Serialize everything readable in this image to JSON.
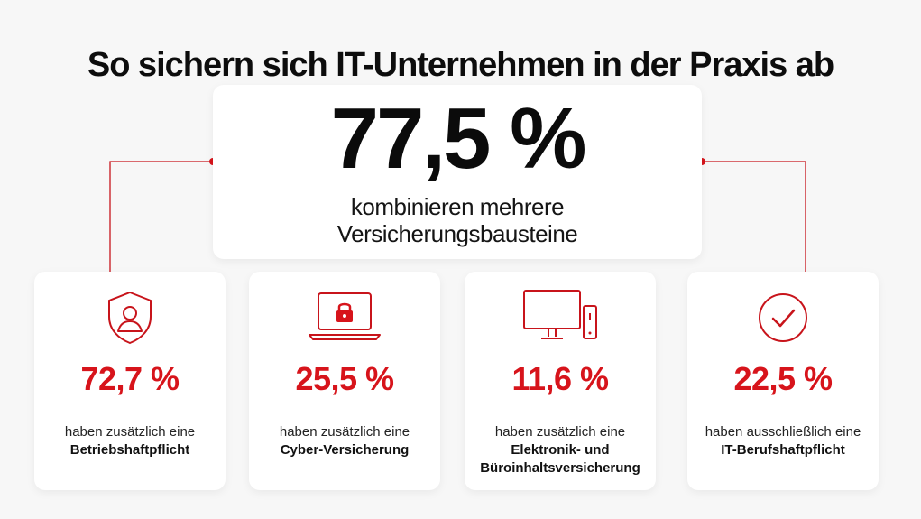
{
  "title": "So sichern sich IT-Unternehmen in der Praxis ab",
  "hero": {
    "value": "77,5 %",
    "line1": "kombinieren mehrere",
    "line2": "Versicherungsbausteine"
  },
  "cards": [
    {
      "icon": "shield-user-icon",
      "value": "72,7 %",
      "line1": "haben zusätzlich eine",
      "line2": "Betriebshaftpflicht",
      "line3": ""
    },
    {
      "icon": "laptop-lock-icon",
      "value": "25,5 %",
      "line1": "haben zusätzlich eine",
      "line2": "Cyber-Versicherung",
      "line3": ""
    },
    {
      "icon": "monitor-phone-icon",
      "value": "11,6 %",
      "line1": "haben zusätzlich eine",
      "line2": "Elektronik- und",
      "line3": "Büroinhaltsversicherung"
    },
    {
      "icon": "check-circle-icon",
      "value": "22,5 %",
      "line1": "haben ausschließlich eine",
      "line2": "IT-Berufshaftpflicht",
      "line3": ""
    }
  ],
  "colors": {
    "accent": "#d7141b",
    "text": "#111111",
    "background": "#f7f7f7",
    "card": "#ffffff"
  }
}
